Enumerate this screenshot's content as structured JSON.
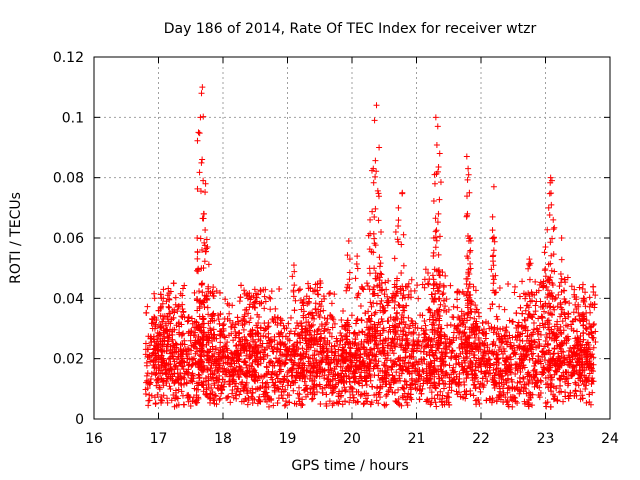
{
  "chart_data": {
    "type": "scatter",
    "title": "Day 186 of 2014, Rate Of TEC Index for receiver wtzr",
    "xlabel": "GPS time / hours",
    "ylabel": "ROTI / TECUs",
    "xlim": [
      16,
      24
    ],
    "ylim": [
      0,
      0.12
    ],
    "xticks": [
      "16",
      "17",
      "18",
      "19",
      "20",
      "21",
      "22",
      "23",
      "24"
    ],
    "yticks": [
      "0",
      "0.02",
      "0.04",
      "0.06",
      "0.08",
      "0.1",
      "0.12"
    ],
    "grid": true,
    "marker": "+",
    "series_color": "#ff0000",
    "sampling": {
      "x_start": 16.8,
      "x_end": 23.75,
      "baseline_median": 0.017,
      "baseline_floor": 0.004,
      "bulk_ceiling": 0.045
    },
    "peaks": [
      {
        "x": 17.68,
        "y": 0.11
      },
      {
        "x": 17.65,
        "y": 0.1
      },
      {
        "x": 17.62,
        "y": 0.095
      },
      {
        "x": 17.73,
        "y": 0.078
      },
      {
        "x": 17.7,
        "y": 0.068
      },
      {
        "x": 17.6,
        "y": 0.06
      },
      {
        "x": 17.76,
        "y": 0.057
      },
      {
        "x": 20.38,
        "y": 0.104
      },
      {
        "x": 20.35,
        "y": 0.099
      },
      {
        "x": 20.42,
        "y": 0.09
      },
      {
        "x": 20.33,
        "y": 0.083
      },
      {
        "x": 20.28,
        "y": 0.066
      },
      {
        "x": 20.45,
        "y": 0.062
      },
      {
        "x": 20.78,
        "y": 0.075
      },
      {
        "x": 20.72,
        "y": 0.07
      },
      {
        "x": 20.68,
        "y": 0.062
      },
      {
        "x": 21.3,
        "y": 0.1
      },
      {
        "x": 21.33,
        "y": 0.097
      },
      {
        "x": 21.36,
        "y": 0.088
      },
      {
        "x": 21.28,
        "y": 0.081
      },
      {
        "x": 21.34,
        "y": 0.068
      },
      {
        "x": 21.27,
        "y": 0.06
      },
      {
        "x": 21.78,
        "y": 0.087
      },
      {
        "x": 21.8,
        "y": 0.083
      },
      {
        "x": 21.82,
        "y": 0.075
      },
      {
        "x": 21.79,
        "y": 0.068
      },
      {
        "x": 21.83,
        "y": 0.06
      },
      {
        "x": 22.2,
        "y": 0.077
      },
      {
        "x": 22.18,
        "y": 0.067
      },
      {
        "x": 22.2,
        "y": 0.06
      },
      {
        "x": 23.08,
        "y": 0.08
      },
      {
        "x": 23.1,
        "y": 0.079
      },
      {
        "x": 23.05,
        "y": 0.07
      },
      {
        "x": 23.12,
        "y": 0.066
      },
      {
        "x": 23.0,
        "y": 0.057
      },
      {
        "x": 23.25,
        "y": 0.06
      },
      {
        "x": 22.75,
        "y": 0.053
      },
      {
        "x": 19.95,
        "y": 0.059
      },
      {
        "x": 19.1,
        "y": 0.051
      },
      {
        "x": 20.08,
        "y": 0.054
      }
    ]
  }
}
